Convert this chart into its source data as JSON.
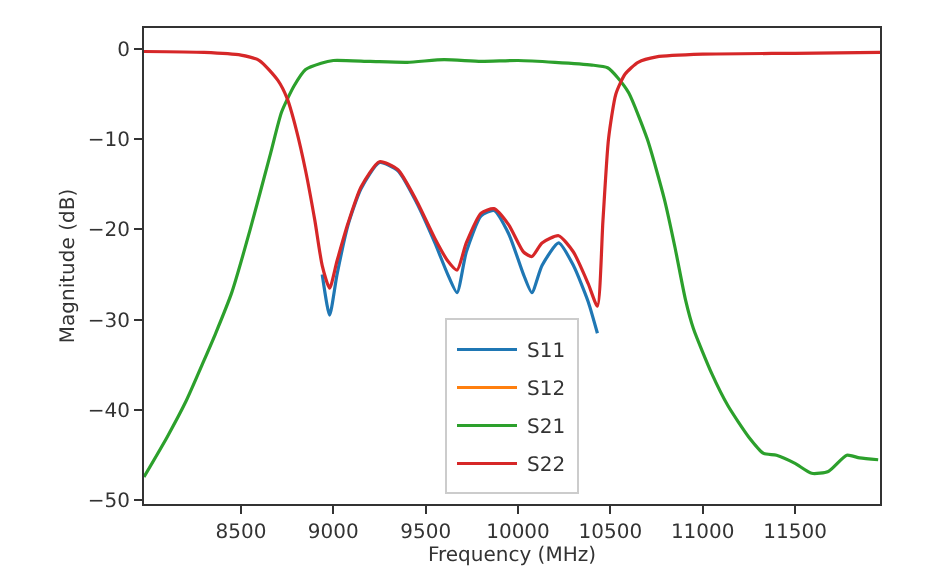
{
  "chart_data": {
    "type": "line",
    "xlabel": "Frequency (MHz)",
    "ylabel": "Magnitude (dB)",
    "xlim": [
      7975,
      11960
    ],
    "ylim": [
      -50.4,
      2.3
    ],
    "xticks": [
      8500,
      9000,
      9500,
      10000,
      10500,
      11000,
      11500
    ],
    "yticks": [
      0,
      -10,
      -20,
      -30,
      -40,
      -50
    ],
    "legend": "bottom",
    "series": [
      {
        "name": "S11",
        "color": "#1f77b4",
        "x": [
          8940,
          8980,
          9020,
          9080,
          9150,
          9250,
          9350,
          9450,
          9550,
          9620,
          9670,
          9720,
          9800,
          9870,
          9950,
          10030,
          10075,
          10130,
          10220,
          10300,
          10380,
          10430
        ],
        "values": [
          -25,
          -29.5,
          -25,
          -19.5,
          -15.5,
          -12.6,
          -13.5,
          -17,
          -21.5,
          -25,
          -27,
          -22.5,
          -18.5,
          -17.9,
          -20.5,
          -25,
          -27,
          -24,
          -21.5,
          -24,
          -28,
          -31.5
        ]
      },
      {
        "name": "S12",
        "color": "#ff7f0e",
        "values": [
          null
        ]
      },
      {
        "name": "S21",
        "color": "#2ca02c",
        "x": [
          7975,
          8100,
          8203,
          8300,
          8363,
          8450,
          8550,
          8660,
          8720,
          8788,
          8850,
          8934,
          9000,
          9200,
          9400,
          9600,
          9800,
          10000,
          10200,
          10400,
          10485,
          10540,
          10600,
          10700,
          10793,
          10850,
          10907,
          10950,
          11050,
          11136,
          11250,
          11330,
          11400,
          11500,
          11590,
          11680,
          11780,
          11850,
          11950
        ],
        "values": [
          -47.4,
          -43,
          -39,
          -34.5,
          -31.5,
          -27,
          -20,
          -11.6,
          -7,
          -4.1,
          -2.3,
          -1.6,
          -1.3,
          -1.4,
          -1.5,
          -1.2,
          -1.4,
          -1.3,
          -1.5,
          -1.8,
          -2.1,
          -3.2,
          -4.9,
          -10,
          -16.7,
          -22,
          -27.8,
          -31,
          -36,
          -39.5,
          -43,
          -44.8,
          -45,
          -45.9,
          -47,
          -46.8,
          -45,
          -45.3,
          -45.5
        ]
      },
      {
        "name": "S22",
        "color": "#d62728",
        "x": [
          7975,
          8300,
          8500,
          8600,
          8700,
          8750,
          8800,
          8850,
          8900,
          8940,
          8980,
          9020,
          9080,
          9150,
          9250,
          9350,
          9450,
          9550,
          9620,
          9670,
          9720,
          9800,
          9870,
          9950,
          10030,
          10075,
          10130,
          10220,
          10300,
          10380,
          10430,
          10460,
          10490,
          10530,
          10580,
          10650,
          10750,
          11000,
          11500,
          11960
        ],
        "values": [
          -0.3,
          -0.4,
          -0.7,
          -1.3,
          -3.5,
          -5.5,
          -9,
          -13.5,
          -19,
          -24,
          -26.5,
          -23.5,
          -19.3,
          -15.3,
          -12.5,
          -13.4,
          -16.8,
          -21,
          -23.5,
          -24.5,
          -21.5,
          -18.2,
          -17.7,
          -19.5,
          -22.5,
          -23,
          -21.5,
          -20.7,
          -22.5,
          -26,
          -28.5,
          -19,
          -10,
          -5,
          -2.8,
          -1.5,
          -0.9,
          -0.6,
          -0.5,
          -0.4
        ]
      }
    ]
  }
}
